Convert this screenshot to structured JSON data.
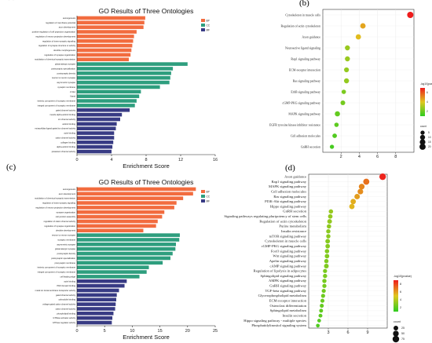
{
  "chart_data": [
    {
      "panel": "(a)",
      "type": "bar",
      "orientation": "horizontal",
      "title": "GO Results of Three Ontologies",
      "xlabel": "Enrichment Score",
      "xlim": [
        0,
        16
      ],
      "xticks": [
        0,
        4,
        8,
        12,
        16
      ],
      "legend": [
        "BP",
        "CC",
        "MF"
      ],
      "legend_position": "top-right",
      "colors": {
        "BP": "#f26c3f",
        "CC": "#2e9e7e",
        "MF": "#383b84"
      },
      "categories": [
        "axonogenesis",
        "regulation of membrane potential",
        "axon development",
        "positive regulation of cell projection organization",
        "regulation of neuron projection development",
        "regulation of trans-synaptic signaling",
        "regulation of synapse structure or activity",
        "dendrite morphogenesis",
        "regulation of synapse organization",
        "modulation of chemical synaptic transmission",
        "glutamatergic synapse",
        "postsynaptic specialization",
        "postsynaptic density",
        "neuron to neuron synapse",
        "asymmetric synapse",
        "synaptic membrane",
        "Z disc",
        "I band",
        "intrinsic component of synaptic membrane",
        "integral component of synaptic membrane",
        "gated channel activity",
        "muscle alpha-actinin binding",
        "ion channel activity",
        "actinin binding",
        "extracellular ligand-gated ion channel activity",
        "actin binding",
        "cation channel activity",
        "collagen binding",
        "alpha-actinin binding",
        "potassium channel activity"
      ],
      "groups": [
        "BP",
        "BP",
        "BP",
        "BP",
        "BP",
        "BP",
        "BP",
        "BP",
        "BP",
        "BP",
        "CC",
        "CC",
        "CC",
        "CC",
        "CC",
        "CC",
        "CC",
        "CC",
        "CC",
        "CC",
        "MF",
        "MF",
        "MF",
        "MF",
        "MF",
        "MF",
        "MF",
        "MF",
        "MF",
        "MF"
      ],
      "values": [
        7.9,
        7.8,
        7.7,
        6.9,
        6.6,
        6.5,
        6.4,
        6.3,
        6.2,
        6.0,
        12.8,
        11.1,
        10.9,
        10.8,
        10.7,
        9.6,
        7.4,
        7.2,
        6.9,
        6.7,
        6.1,
        5.2,
        5.0,
        4.6,
        4.5,
        4.3,
        4.3,
        4.2,
        4.1,
        4.0
      ]
    },
    {
      "panel": "(b)",
      "type": "scatter",
      "title": "",
      "xlabel": "",
      "xlim": [
        0,
        10
      ],
      "xticks": [
        2,
        4,
        6,
        8
      ],
      "legend_color_title": "-log10(pvalue)",
      "legend_color_ticks": [
        "6",
        "4",
        "2"
      ],
      "legend_size_title": "count",
      "legend_size_ticks": [
        "5",
        "10",
        "15",
        "20"
      ],
      "categories": [
        "Cytoskeleton in muscle cells",
        "Regulation of actin cytoskeleton",
        "Axon guidance",
        "Neuroactive ligand signaling",
        "Rap1 signaling pathway",
        "ECM-receptor interaction",
        "Ras signaling pathway",
        "ErbB signaling pathway",
        "cGMP-PKG signaling pathway",
        "MAPK signaling pathway",
        "EGFR tyrosine kinase inhibitor resistance",
        "Cell adhesion molecules",
        "GnRH secretion"
      ],
      "x": [
        9.6,
        4.4,
        3.9,
        2.7,
        2.7,
        2.6,
        2.6,
        2.3,
        2.2,
        1.6,
        1.5,
        1.3,
        1.0
      ],
      "neglog10p": [
        7.0,
        4.6,
        4.2,
        2.8,
        2.8,
        2.7,
        2.7,
        2.3,
        2.2,
        1.9,
        1.8,
        1.6,
        1.4
      ],
      "count": [
        21,
        13,
        12,
        10,
        10,
        9,
        10,
        6,
        8,
        11,
        6,
        7,
        5
      ]
    },
    {
      "panel": "(c)",
      "type": "bar",
      "orientation": "horizontal",
      "title": "GO Results of Three Ontologies",
      "xlabel": "Enrichment Score",
      "xlim": [
        0,
        25
      ],
      "xticks": [
        0,
        5,
        10,
        15,
        20,
        25
      ],
      "legend": [
        "BP",
        "CC",
        "MF"
      ],
      "legend_position": "top-right",
      "colors": {
        "BP": "#f26c3f",
        "CC": "#2e9e7e",
        "MF": "#383b84"
      },
      "categories": [
        "axonogenesis",
        "axon development",
        "modulation of chemical synaptic transmission",
        "regulation of trans-synaptic signaling",
        "regulation of neuron projection development",
        "synapse organization",
        "cell junction assembly",
        "regulation of cation channel activity",
        "regulation of synapse organization",
        "dendrite development",
        "neuron to neuron synapse",
        "synaptic membrane",
        "asymmetric synapse",
        "glutamatergic synapse",
        "postsynaptic density",
        "postsynaptic specialization",
        "presynaptic membrane",
        "intrinsic component of synaptic membrane",
        "integral component of synaptic membrane",
        "cell leading edge",
        "actin binding",
        "PDZ domain binding",
        "metal ion transmembrane transporter activity",
        "gated channel activity",
        "calmodulin binding",
        "voltage-gated cation channel activity",
        "cation channel activity",
        "phospholipid binding",
        "GTPase activator activity",
        "GTPase regulator activity"
      ],
      "groups": [
        "BP",
        "BP",
        "BP",
        "BP",
        "BP",
        "BP",
        "BP",
        "BP",
        "BP",
        "BP",
        "CC",
        "CC",
        "CC",
        "CC",
        "CC",
        "CC",
        "CC",
        "CC",
        "CC",
        "CC",
        "MF",
        "MF",
        "MF",
        "MF",
        "MF",
        "MF",
        "MF",
        "MF",
        "MF",
        "MF"
      ],
      "values": [
        21.5,
        21.0,
        19.2,
        18.0,
        17.6,
        15.8,
        15.4,
        14.6,
        14.3,
        12.0,
        18.6,
        18.5,
        17.9,
        17.8,
        17.3,
        16.9,
        15.5,
        13.0,
        12.6,
        11.3,
        9.0,
        8.6,
        7.6,
        7.2,
        7.1,
        7.0,
        6.9,
        6.6,
        6.4,
        6.3
      ]
    },
    {
      "panel": "(d)",
      "type": "scatter",
      "title": "",
      "xlabel": "",
      "xlim": [
        0,
        12
      ],
      "xticks": [
        3,
        6,
        9
      ],
      "legend_color_title": "-log10(pvalue)",
      "legend_color_ticks": [
        "8",
        "6",
        "4",
        "2"
      ],
      "legend_size_title": "count",
      "legend_size_ticks": [
        "25",
        "50",
        "75"
      ],
      "categories": [
        "Axon guidance",
        "Rap1 signaling pathway",
        "MAPK signaling pathway",
        "Cell adhesion molecules",
        "Ras signaling pathway",
        "PI3K-Akt signaling pathway",
        "Hippo signaling pathway",
        "GnRH secretion",
        "Signaling pathways regulating pluripotency of stem cells",
        "Regulation of actin cytoskeleton",
        "Purine metabolism",
        "Insulin resistance",
        "mTOR signaling pathway",
        "Cytoskeleton in muscle cells",
        "cGMP-PKG signaling pathway",
        "FoxO signaling pathway",
        "Wnt signaling pathway",
        "Apelin signaling pathway",
        "cAMP signaling pathway",
        "Regulation of lipolysis in adipocytes",
        "Sphingolipid signaling pathway",
        "AMPK signaling pathway",
        "GnRH signaling pathway",
        "TGF-beta signaling pathway",
        "Glycerophospholipid metabolism",
        "ECM-receptor interaction",
        "Osteoclast differentiation",
        "Sphingolipid metabolism",
        "Insulin secretion",
        "Hippo signaling pathway - multiple species",
        "Phosphatidylinositol signaling system"
      ],
      "x": [
        11.3,
        8.8,
        8.1,
        7.9,
        7.4,
        6.8,
        6.6,
        3.4,
        3.3,
        3.2,
        3.1,
        3.0,
        3.0,
        2.9,
        2.9,
        2.8,
        2.8,
        2.7,
        2.7,
        2.5,
        2.5,
        2.4,
        2.4,
        2.3,
        2.2,
        2.1,
        2.0,
        1.9,
        1.8,
        1.6,
        1.4
      ],
      "neglog10p": [
        9.3,
        7.4,
        6.9,
        6.7,
        6.3,
        5.9,
        5.7,
        3.5,
        3.4,
        3.4,
        3.3,
        3.2,
        3.2,
        3.1,
        3.1,
        3.0,
        3.0,
        2.9,
        2.9,
        2.8,
        2.8,
        2.7,
        2.7,
        2.6,
        2.5,
        2.4,
        2.3,
        2.2,
        2.1,
        1.9,
        1.8
      ],
      "count": [
        75,
        60,
        50,
        45,
        42,
        40,
        38,
        20,
        22,
        25,
        20,
        18,
        18,
        24,
        22,
        20,
        22,
        18,
        25,
        16,
        18,
        18,
        16,
        15,
        15,
        14,
        14,
        12,
        12,
        10,
        10
      ]
    }
  ]
}
